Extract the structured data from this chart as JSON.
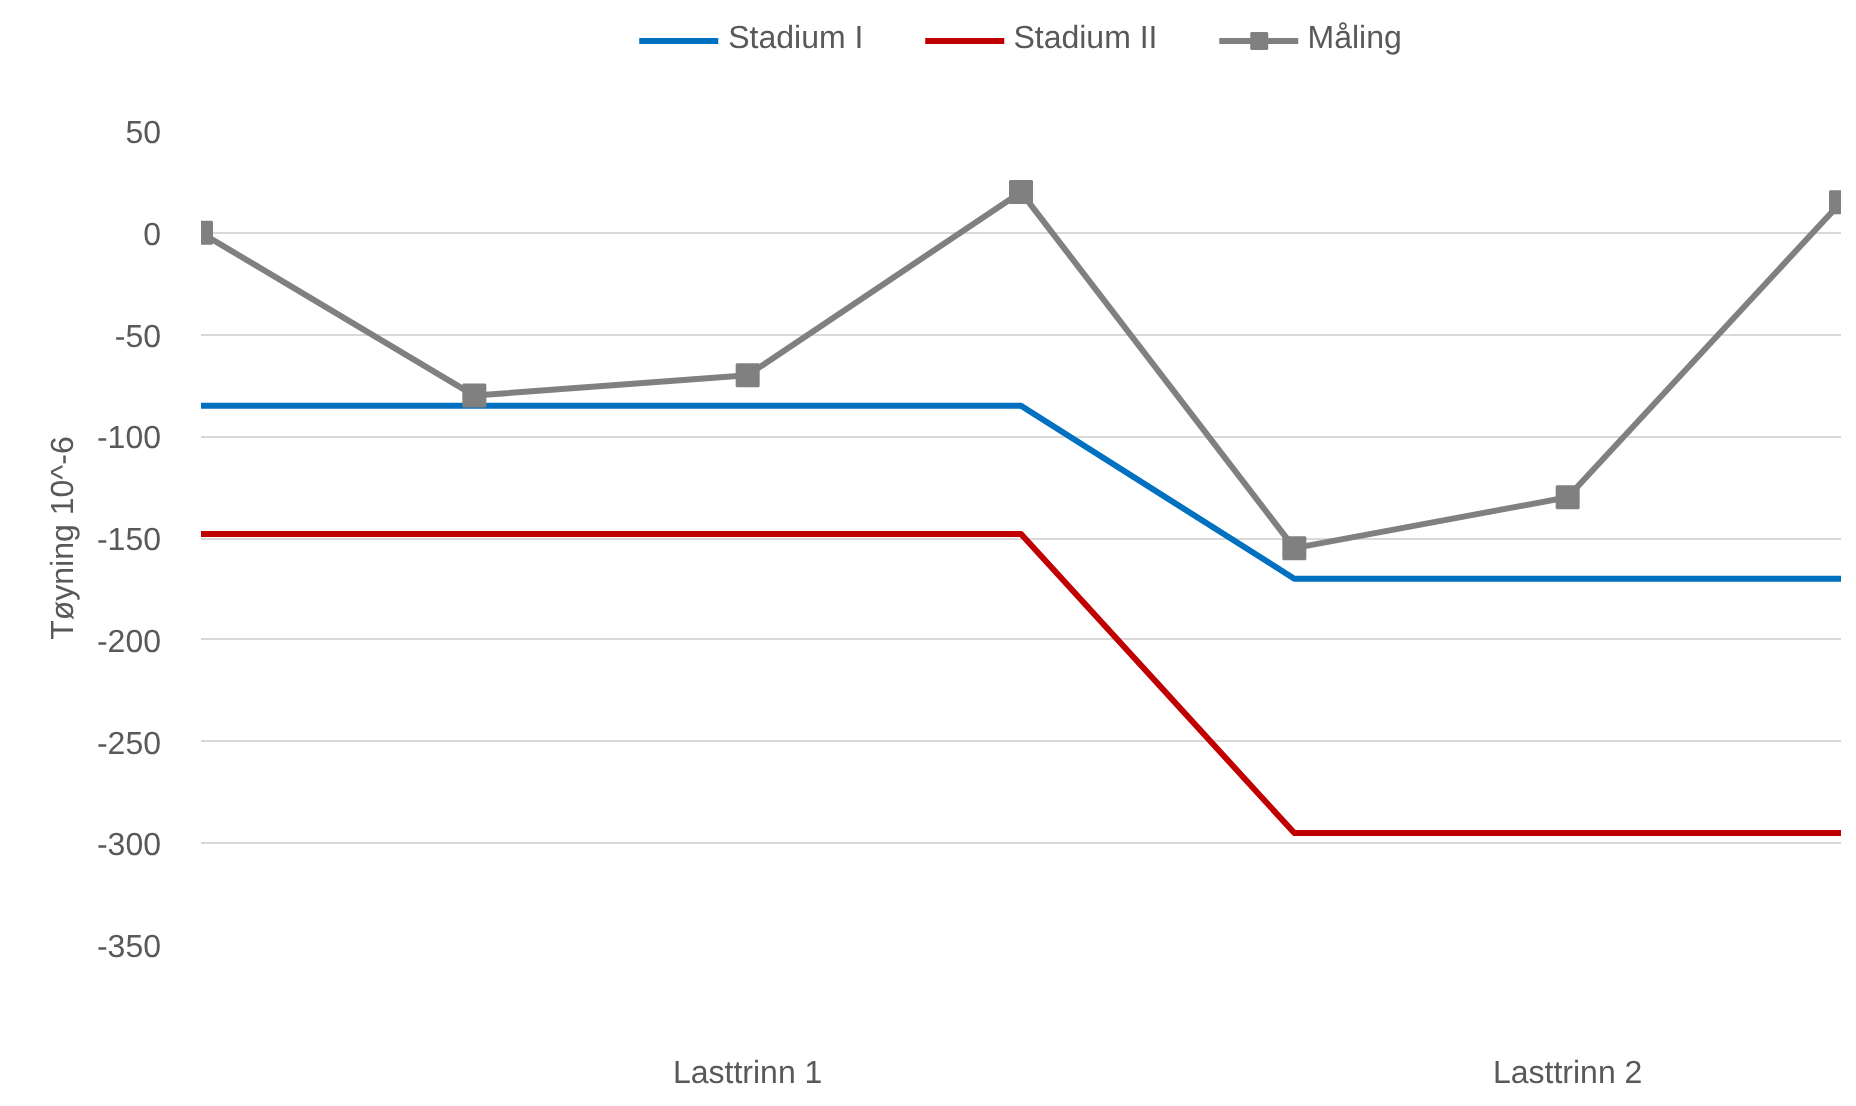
{
  "chart_data": {
    "type": "line",
    "ylabel": "Tøyning 10^-6",
    "categories": [
      null,
      null,
      "Lasttrinn 1",
      null,
      null,
      "Lasttrinn 2",
      null
    ],
    "series": [
      {
        "name": "Stadium I",
        "color": "#0070c0",
        "marker": "none",
        "values": [
          -85,
          -85,
          -85,
          -85,
          -170,
          -170,
          -170
        ]
      },
      {
        "name": "Stadium II",
        "color": "#c00000",
        "marker": "none",
        "values": [
          -148,
          -148,
          -148,
          -148,
          -295,
          -295,
          -295
        ]
      },
      {
        "name": "Måling",
        "color": "#808080",
        "marker": "square",
        "values": [
          0,
          -80,
          -70,
          20,
          -155,
          -130,
          15
        ]
      }
    ],
    "ylim": [
      -350,
      50
    ],
    "yticks": [
      50,
      0,
      -50,
      -100,
      -150,
      -200,
      -250,
      -300,
      -350
    ],
    "grid": "y",
    "legend": "top",
    "line_style": "solid"
  }
}
